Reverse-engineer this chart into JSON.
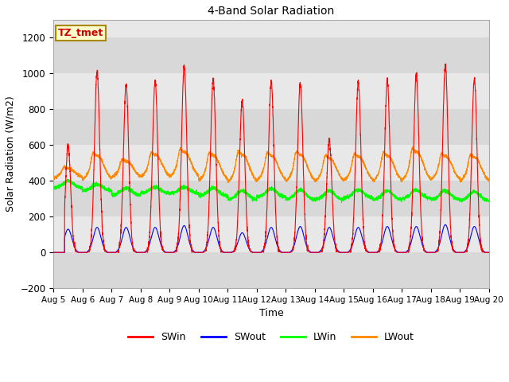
{
  "title": "4-Band Solar Radiation",
  "xlabel": "Time",
  "ylabel": "Solar Radiation (W/m2)",
  "ylim": [
    -200,
    1300
  ],
  "yticks": [
    -200,
    0,
    200,
    400,
    600,
    800,
    1000,
    1200
  ],
  "x_tick_labels": [
    "Aug 5",
    "Aug 6",
    "Aug 7",
    "Aug 8",
    "Aug 9",
    "Aug 10",
    "Aug 11",
    "Aug 12",
    "Aug 13",
    "Aug 14",
    "Aug 15",
    "Aug 16",
    "Aug 17",
    "Aug 18",
    "Aug 19",
    "Aug 20"
  ],
  "annotation_text": "TZ_tmet",
  "annotation_box_facecolor": "#FFFFCC",
  "annotation_box_edgecolor": "#AA8800",
  "annotation_text_color": "#CC0000",
  "colors": {
    "SWin": "#FF0000",
    "SWout": "#0000FF",
    "LWin": "#00FF00",
    "LWout": "#FF8800"
  },
  "bg_color": "#FFFFFF",
  "plot_bg_color": "#E8E8E8",
  "band_colors": [
    "#F0F0F0",
    "#E0E0E0"
  ],
  "grid_color": "#CCCCCC",
  "n_days": 15,
  "pts_per_day": 288,
  "SWin_peaks": [
    600,
    1010,
    940,
    955,
    1040,
    970,
    850,
    955,
    950,
    625,
    955,
    960,
    995,
    1050,
    970
  ],
  "SWout_peaks": [
    130,
    140,
    140,
    140,
    150,
    140,
    110,
    140,
    145,
    140,
    140,
    145,
    145,
    155,
    145
  ],
  "LWin_base": [
    400,
    380,
    360,
    365,
    365,
    360,
    345,
    355,
    350,
    345,
    350,
    345,
    350,
    345,
    340
  ],
  "LWin_night": [
    360,
    345,
    320,
    330,
    330,
    315,
    295,
    310,
    295,
    295,
    305,
    295,
    300,
    295,
    290
  ],
  "LWout_peaks": [
    470,
    540,
    510,
    545,
    560,
    540,
    545,
    540,
    545,
    525,
    535,
    540,
    560,
    535,
    530
  ],
  "LWout_night": [
    415,
    400,
    415,
    415,
    415,
    395,
    385,
    395,
    390,
    390,
    395,
    390,
    395,
    400,
    390
  ]
}
